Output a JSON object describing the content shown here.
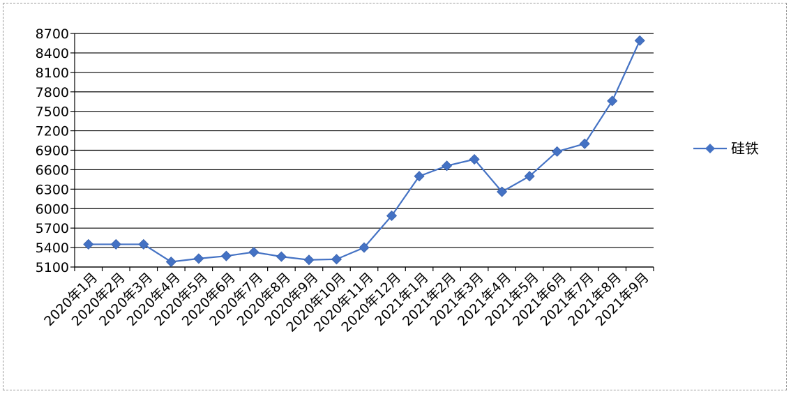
{
  "chart_data": {
    "type": "line",
    "title": "",
    "xlabel": "",
    "ylabel": "",
    "ylim": [
      5100,
      8700
    ],
    "y_ticks": [
      5100,
      5400,
      5700,
      6000,
      6300,
      6600,
      6900,
      7200,
      7500,
      7800,
      8100,
      8400,
      8700
    ],
    "grid": true,
    "legend_position": "right",
    "categories": [
      "2020年1月",
      "2020年2月",
      "2020年3月",
      "2020年4月",
      "2020年5月",
      "2020年6月",
      "2020年7月",
      "2020年8月",
      "2020年9月",
      "2020年10月",
      "2020年11月",
      "2020年12月",
      "2021年1月",
      "2021年2月",
      "2021年3月",
      "2021年4月",
      "2021年5月",
      "2021年6月",
      "2021年7月",
      "2021年8月",
      "2021年9月"
    ],
    "series": [
      {
        "name": "硅铁",
        "color": "#4472C4",
        "values": [
          5450,
          5450,
          5450,
          5180,
          5230,
          5270,
          5330,
          5260,
          5210,
          5220,
          5400,
          5890,
          6500,
          6660,
          6760,
          6260,
          6500,
          6880,
          7000,
          7660,
          8590
        ]
      }
    ]
  }
}
